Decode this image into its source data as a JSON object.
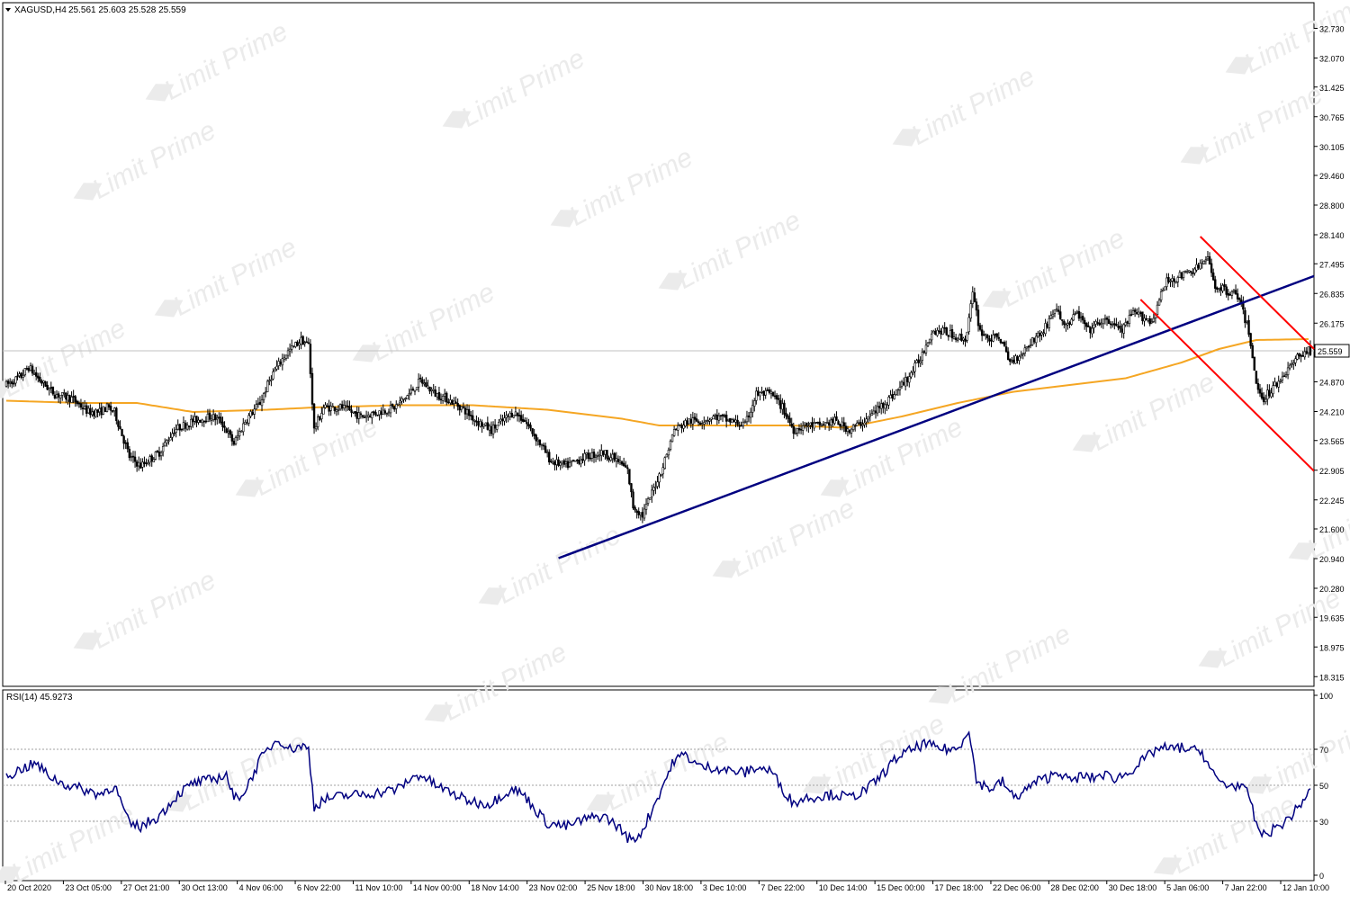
{
  "colors": {
    "background": "#ffffff",
    "frame": "#000000",
    "candle_up": "#000000",
    "candle_down": "#000000",
    "moving_average": "#f5a623",
    "support_trendline": "#000080",
    "channel": "#ff0000",
    "rsi_line": "#000080",
    "rsi_levels": "#a0a0a0",
    "price_tag": "#ffffff",
    "price_tag_text": "#000000",
    "watermark": "#ebebeb"
  },
  "watermark_text": "Limit Prime",
  "chart_data": [
    {
      "type": "candlestick",
      "title": "XAGUSD,H4",
      "ohlc_readout": "25.561 25.603 25.528 25.559",
      "current_price_label": "25.559",
      "y_ticks": [
        "32.730",
        "32.070",
        "31.425",
        "30.765",
        "30.105",
        "29.460",
        "28.800",
        "28.140",
        "27.495",
        "26.835",
        "26.175",
        "25.515",
        "24.870",
        "24.210",
        "23.565",
        "22.905",
        "22.245",
        "21.600",
        "20.940",
        "20.280",
        "19.635",
        "18.975",
        "18.315"
      ],
      "ylim": [
        18.1,
        33.3
      ],
      "x_ticks": [
        "20 Oct 2020",
        "23 Oct 05:00",
        "27 Oct 21:00",
        "30 Oct 13:00",
        "4 Nov 06:00",
        "6 Nov 22:00",
        "11 Nov 10:00",
        "14 Nov 00:00",
        "18 Nov 14:00",
        "23 Nov 02:00",
        "25 Nov 18:00",
        "30 Nov 18:00",
        "3 Dec 10:00",
        "7 Dec 22:00",
        "10 Dec 14:00",
        "15 Dec 00:00",
        "17 Dec 18:00",
        "22 Dec 06:00",
        "28 Dec 02:00",
        "30 Dec 18:00",
        "5 Jan 06:00",
        "7 Jan 22:00",
        "12 Jan 10:00"
      ],
      "price_anchors": [
        [
          0,
          24.8
        ],
        [
          8,
          25.0
        ],
        [
          12,
          25.2
        ],
        [
          18,
          24.9
        ],
        [
          26,
          24.6
        ],
        [
          35,
          24.5
        ],
        [
          44,
          24.2
        ],
        [
          50,
          24.2
        ],
        [
          54,
          24.3
        ],
        [
          58,
          24.2
        ],
        [
          66,
          23.2
        ],
        [
          72,
          23.0
        ],
        [
          82,
          23.3
        ],
        [
          90,
          23.8
        ],
        [
          100,
          24.0
        ],
        [
          110,
          24.1
        ],
        [
          115,
          24.0
        ],
        [
          122,
          23.5
        ],
        [
          128,
          24.0
        ],
        [
          136,
          24.4
        ],
        [
          142,
          25.0
        ],
        [
          150,
          25.5
        ],
        [
          158,
          25.8
        ],
        [
          162,
          25.7
        ],
        [
          165,
          23.8
        ],
        [
          170,
          24.3
        ],
        [
          180,
          24.3
        ],
        [
          190,
          24.1
        ],
        [
          200,
          24.2
        ],
        [
          208,
          24.3
        ],
        [
          216,
          24.6
        ],
        [
          222,
          24.9
        ],
        [
          230,
          24.6
        ],
        [
          236,
          24.5
        ],
        [
          244,
          24.3
        ],
        [
          252,
          24.0
        ],
        [
          260,
          23.8
        ],
        [
          266,
          24.0
        ],
        [
          272,
          24.2
        ],
        [
          278,
          24.0
        ],
        [
          286,
          23.5
        ],
        [
          292,
          23.1
        ],
        [
          300,
          23.0
        ],
        [
          310,
          23.2
        ],
        [
          320,
          23.3
        ],
        [
          328,
          23.1
        ],
        [
          333,
          22.9
        ],
        [
          336,
          22.1
        ],
        [
          341,
          21.9
        ],
        [
          346,
          22.4
        ],
        [
          352,
          23.0
        ],
        [
          358,
          23.8
        ],
        [
          366,
          24.0
        ],
        [
          372,
          24.0
        ],
        [
          380,
          24.1
        ],
        [
          388,
          24.0
        ],
        [
          396,
          23.9
        ],
        [
          402,
          24.6
        ],
        [
          410,
          24.6
        ],
        [
          416,
          24.3
        ],
        [
          422,
          23.8
        ],
        [
          428,
          23.9
        ],
        [
          436,
          23.9
        ],
        [
          444,
          24.0
        ],
        [
          452,
          23.8
        ],
        [
          460,
          24.0
        ],
        [
          468,
          24.3
        ],
        [
          476,
          24.6
        ],
        [
          484,
          25.0
        ],
        [
          490,
          25.4
        ],
        [
          496,
          26.0
        ],
        [
          502,
          26.0
        ],
        [
          508,
          25.9
        ],
        [
          514,
          25.8
        ],
        [
          518,
          26.8
        ],
        [
          522,
          26.0
        ],
        [
          528,
          25.8
        ],
        [
          532,
          25.9
        ],
        [
          538,
          25.3
        ],
        [
          544,
          25.5
        ],
        [
          550,
          25.8
        ],
        [
          556,
          26.0
        ],
        [
          562,
          26.5
        ],
        [
          568,
          26.1
        ],
        [
          574,
          26.4
        ],
        [
          580,
          26.0
        ],
        [
          586,
          26.2
        ],
        [
          592,
          26.2
        ],
        [
          598,
          26.0
        ],
        [
          604,
          26.4
        ],
        [
          610,
          26.3
        ],
        [
          614,
          26.2
        ],
        [
          618,
          26.7
        ],
        [
          622,
          27.1
        ],
        [
          628,
          27.2
        ],
        [
          634,
          27.3
        ],
        [
          638,
          27.4
        ],
        [
          644,
          27.6
        ],
        [
          648,
          27.0
        ],
        [
          654,
          26.9
        ],
        [
          660,
          26.8
        ],
        [
          666,
          26.0
        ],
        [
          670,
          24.8
        ],
        [
          674,
          24.5
        ],
        [
          678,
          24.7
        ],
        [
          684,
          25.0
        ],
        [
          690,
          25.3
        ],
        [
          694,
          25.5
        ],
        [
          698,
          25.56
        ]
      ],
      "ma_anchors": [
        [
          0,
          24.45
        ],
        [
          40,
          24.4
        ],
        [
          70,
          24.4
        ],
        [
          100,
          24.2
        ],
        [
          140,
          24.25
        ],
        [
          165,
          24.3
        ],
        [
          210,
          24.35
        ],
        [
          250,
          24.35
        ],
        [
          290,
          24.25
        ],
        [
          330,
          24.05
        ],
        [
          350,
          23.9
        ],
        [
          380,
          23.9
        ],
        [
          420,
          23.9
        ],
        [
          450,
          23.85
        ],
        [
          480,
          24.1
        ],
        [
          510,
          24.4
        ],
        [
          540,
          24.65
        ],
        [
          570,
          24.8
        ],
        [
          600,
          24.95
        ],
        [
          630,
          25.3
        ],
        [
          650,
          25.6
        ],
        [
          670,
          25.8
        ],
        [
          698,
          25.82
        ]
      ],
      "rsi": {
        "label": "RSI(14) 45.9273",
        "levels": [
          70,
          50,
          30
        ],
        "axis_ticks": [
          "100",
          "70",
          "50",
          "30",
          "0"
        ],
        "anchors": [
          [
            0,
            55
          ],
          [
            10,
            60
          ],
          [
            16,
            62
          ],
          [
            22,
            56
          ],
          [
            30,
            51
          ],
          [
            40,
            48
          ],
          [
            50,
            45
          ],
          [
            58,
            50
          ],
          [
            66,
            28
          ],
          [
            72,
            27
          ],
          [
            82,
            33
          ],
          [
            92,
            45
          ],
          [
            100,
            51
          ],
          [
            110,
            53
          ],
          [
            118,
            56
          ],
          [
            122,
            42
          ],
          [
            128,
            47
          ],
          [
            136,
            64
          ],
          [
            142,
            72
          ],
          [
            146,
            76
          ],
          [
            152,
            70
          ],
          [
            158,
            72
          ],
          [
            162,
            70
          ],
          [
            165,
            38
          ],
          [
            170,
            42
          ],
          [
            180,
            44
          ],
          [
            190,
            45
          ],
          [
            200,
            46
          ],
          [
            210,
            48
          ],
          [
            216,
            53
          ],
          [
            222,
            56
          ],
          [
            230,
            50
          ],
          [
            238,
            46
          ],
          [
            246,
            42
          ],
          [
            254,
            40
          ],
          [
            260,
            40
          ],
          [
            266,
            45
          ],
          [
            272,
            48
          ],
          [
            278,
            44
          ],
          [
            284,
            36
          ],
          [
            290,
            29
          ],
          [
            300,
            27
          ],
          [
            310,
            31
          ],
          [
            320,
            33
          ],
          [
            328,
            27
          ],
          [
            333,
            21
          ],
          [
            336,
            19
          ],
          [
            341,
            25
          ],
          [
            346,
            36
          ],
          [
            352,
            50
          ],
          [
            358,
            64
          ],
          [
            364,
            67
          ],
          [
            372,
            60
          ],
          [
            380,
            60
          ],
          [
            388,
            58
          ],
          [
            396,
            57
          ],
          [
            402,
            60
          ],
          [
            410,
            58
          ],
          [
            416,
            48
          ],
          [
            422,
            40
          ],
          [
            428,
            43
          ],
          [
            436,
            44
          ],
          [
            444,
            45
          ],
          [
            452,
            43
          ],
          [
            460,
            47
          ],
          [
            466,
            52
          ],
          [
            472,
            59
          ],
          [
            478,
            66
          ],
          [
            486,
            70
          ],
          [
            492,
            73
          ],
          [
            498,
            71
          ],
          [
            504,
            70
          ],
          [
            510,
            70
          ],
          [
            516,
            82
          ],
          [
            520,
            52
          ],
          [
            528,
            48
          ],
          [
            534,
            52
          ],
          [
            540,
            43
          ],
          [
            546,
            47
          ],
          [
            552,
            52
          ],
          [
            558,
            54
          ],
          [
            564,
            58
          ],
          [
            570,
            52
          ],
          [
            576,
            55
          ],
          [
            582,
            54
          ],
          [
            588,
            56
          ],
          [
            594,
            54
          ],
          [
            600,
            56
          ],
          [
            606,
            61
          ],
          [
            612,
            66
          ],
          [
            618,
            71
          ],
          [
            624,
            70
          ],
          [
            630,
            71
          ],
          [
            636,
            69
          ],
          [
            640,
            70
          ],
          [
            644,
            62
          ],
          [
            648,
            54
          ],
          [
            654,
            50
          ],
          [
            660,
            50
          ],
          [
            666,
            45
          ],
          [
            670,
            28
          ],
          [
            674,
            22
          ],
          [
            680,
            26
          ],
          [
            686,
            30
          ],
          [
            692,
            37
          ],
          [
            698,
            46
          ]
        ]
      }
    }
  ]
}
